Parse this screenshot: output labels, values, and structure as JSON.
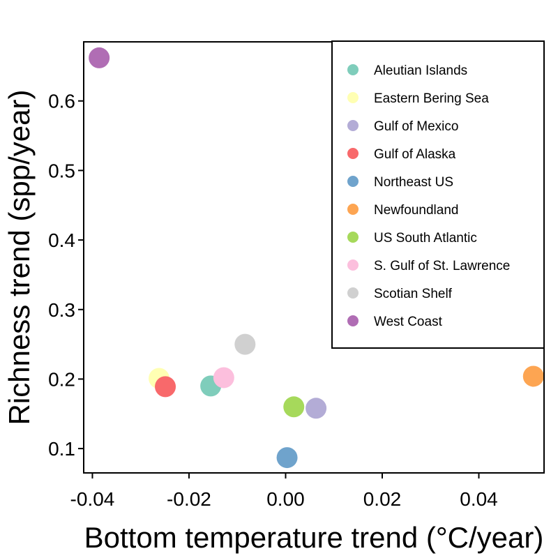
{
  "chart_data": {
    "type": "scatter",
    "title": "",
    "xlabel": "Bottom temperature trend (°C/year)",
    "ylabel": "Richness trend (spp/year)",
    "xlim": [
      -0.0418,
      0.0535
    ],
    "ylim": [
      0.065,
      0.685
    ],
    "x_ticks": [
      -0.04,
      -0.02,
      0.0,
      0.02,
      0.04
    ],
    "x_tick_labels": [
      "-0.04",
      "-0.02",
      "0.00",
      "0.02",
      "0.04"
    ],
    "y_ticks": [
      0.1,
      0.2,
      0.3,
      0.4,
      0.5,
      0.6
    ],
    "y_tick_labels": [
      "0.1",
      "0.2",
      "0.3",
      "0.4",
      "0.5",
      "0.6"
    ],
    "grid": false,
    "legend_position": "top-right",
    "series": [
      {
        "name": "Aleutian Islands",
        "color": "#7fcdbb",
        "x": -0.0155,
        "y": 0.19
      },
      {
        "name": "Eastern Bering Sea",
        "color": "#ffffb3",
        "x": -0.0262,
        "y": 0.201
      },
      {
        "name": "Gulf of Mexico",
        "color": "#b3acd6",
        "x": 0.0063,
        "y": 0.158
      },
      {
        "name": "Gulf of Alaska",
        "color": "#f8696b",
        "x": -0.0249,
        "y": 0.189
      },
      {
        "name": "Northeast US",
        "color": "#6fa3cc",
        "x": 0.0003,
        "y": 0.087
      },
      {
        "name": "Newfoundland",
        "color": "#fda552",
        "x": 0.0513,
        "y": 0.204
      },
      {
        "name": "US South Atlantic",
        "color": "#a6d95b",
        "x": 0.0017,
        "y": 0.16
      },
      {
        "name": "S. Gulf of St. Lawrence",
        "color": "#fcbfdd",
        "x": -0.0128,
        "y": 0.202
      },
      {
        "name": "Scotian Shelf",
        "color": "#d0d0d0",
        "x": -0.0084,
        "y": 0.25
      },
      {
        "name": "West Coast",
        "color": "#b06db4",
        "x": -0.0386,
        "y": 0.662
      }
    ]
  }
}
